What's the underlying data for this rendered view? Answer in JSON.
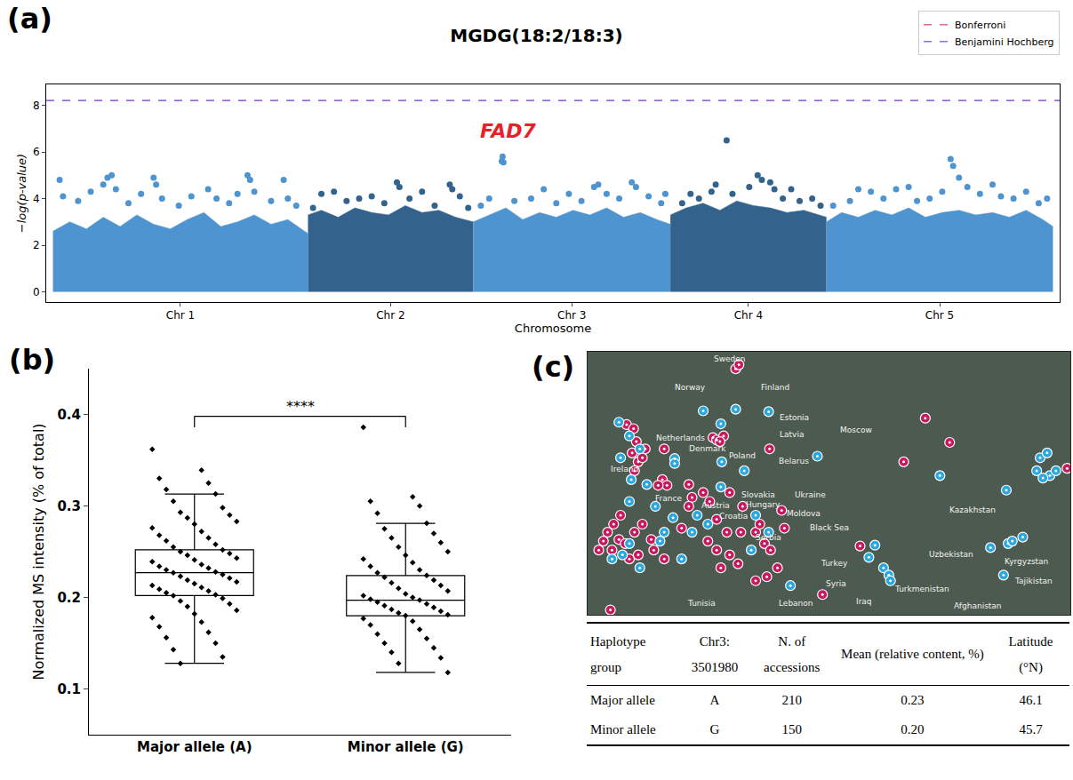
{
  "chart_data": [
    {
      "panel": "(a)",
      "type": "scatter",
      "title": "MGDG(18:2/18:3)",
      "x_label": "Chromosome",
      "y_label": "−log(p-value)",
      "xlim": [
        -0.8,
        120
      ],
      "ylim": [
        -0.44,
        8.9
      ],
      "xticks": [
        {
          "value": 15.2,
          "label": "Chr 1"
        },
        {
          "value": 40.25,
          "label": "Chr 2"
        },
        {
          "value": 61.85,
          "label": "Chr 3"
        },
        {
          "value": 82.9,
          "label": "Chr 4"
        },
        {
          "value": 105.7,
          "label": "Chr 5"
        }
      ],
      "yticks": [
        0,
        2,
        4,
        6,
        8
      ],
      "grid": false,
      "legend": "top right",
      "marker": "circle",
      "series": [
        {
          "type": "area",
          "color": "#4e94d0",
          "x": [
            0,
            2,
            4,
            6,
            8,
            10,
            12,
            14,
            16,
            18,
            20,
            22,
            24,
            26,
            28,
            30.4
          ],
          "values": [
            2.6,
            3.0,
            2.7,
            3.2,
            2.8,
            3.3,
            2.9,
            2.7,
            3.1,
            3.4,
            2.8,
            3.0,
            3.3,
            2.9,
            3.1,
            2.5
          ]
        },
        {
          "type": "scatter",
          "color": "#4e94d0",
          "x": [
            0.8,
            1.2,
            3.0,
            4.5,
            6.0,
            6.5,
            7.0,
            7.5,
            9.0,
            10.5,
            12.0,
            12.3,
            13.0,
            15.0,
            16.5,
            18.5,
            19.5,
            21.0,
            22.0,
            23.2,
            23.5,
            24.0,
            26.0,
            27.5,
            28.0,
            29.0
          ],
          "values": [
            4.8,
            4.1,
            3.9,
            4.3,
            4.6,
            4.9,
            5.0,
            4.4,
            3.8,
            4.2,
            4.9,
            4.6,
            4.0,
            3.7,
            4.1,
            4.4,
            4.0,
            3.8,
            4.2,
            5.0,
            4.8,
            4.3,
            3.9,
            4.8,
            4.0,
            3.7
          ]
        },
        {
          "type": "area",
          "color": "#33628c",
          "x": [
            30.4,
            32,
            34,
            36,
            38,
            40,
            42,
            44,
            46,
            48,
            50.1
          ],
          "values": [
            3.3,
            3.5,
            3.2,
            3.6,
            3.4,
            3.3,
            3.7,
            3.4,
            3.5,
            3.2,
            3.0
          ]
        },
        {
          "type": "scatter",
          "color": "#33628c",
          "x": [
            31.0,
            32.0,
            33.5,
            35.0,
            36.5,
            38.0,
            39.5,
            41.0,
            41.3,
            42.5,
            44.0,
            45.5,
            47.3,
            47.6,
            48.5,
            49.5
          ],
          "values": [
            3.6,
            4.2,
            4.3,
            3.9,
            4.0,
            4.1,
            3.8,
            4.7,
            4.5,
            4.0,
            4.3,
            3.7,
            4.6,
            4.4,
            4.1,
            3.6
          ]
        },
        {
          "type": "area",
          "color": "#4e94d0",
          "x": [
            50.1,
            52,
            54,
            56,
            58,
            60,
            62,
            64,
            66,
            68,
            70,
            72,
            73.6
          ],
          "values": [
            3.0,
            3.3,
            3.6,
            3.1,
            3.4,
            3.2,
            3.5,
            3.3,
            3.6,
            3.2,
            3.4,
            3.1,
            2.9
          ]
        },
        {
          "type": "scatter",
          "color": "#4e94d0",
          "x": [
            51.0,
            52.0,
            53.5,
            53.6,
            53.7,
            55.0,
            57.0,
            58.5,
            60.0,
            61.5,
            63.0,
            64.5,
            65.0,
            66.0,
            67.5,
            69.0,
            69.5,
            71.0,
            72.5,
            73.0
          ],
          "values": [
            3.7,
            4.0,
            5.6,
            5.8,
            5.55,
            3.9,
            4.0,
            4.4,
            3.8,
            4.2,
            3.9,
            4.5,
            4.6,
            4.2,
            4.0,
            4.7,
            4.5,
            4.1,
            3.8,
            4.2
          ]
        },
        {
          "type": "area",
          "color": "#33628c",
          "x": [
            73.6,
            75.5,
            77.5,
            79.5,
            81.5,
            83.5,
            85.5,
            87.5,
            89.5,
            92.2
          ],
          "values": [
            3.3,
            3.6,
            3.8,
            3.5,
            3.9,
            3.7,
            3.6,
            3.4,
            3.5,
            3.2
          ]
        },
        {
          "type": "scatter",
          "color": "#33628c",
          "x": [
            75.0,
            76.0,
            77.0,
            78.5,
            79.0,
            80.3,
            81.0,
            83.0,
            84.0,
            84.5,
            85.5,
            86.0,
            87.0,
            88.0,
            89.0,
            90.5,
            91.5
          ],
          "values": [
            3.8,
            4.2,
            4.0,
            4.3,
            4.6,
            6.5,
            4.2,
            4.5,
            5.0,
            4.8,
            4.7,
            4.4,
            4.0,
            4.4,
            3.9,
            4.0,
            3.7
          ]
        },
        {
          "type": "area",
          "color": "#4e94d0",
          "x": [
            92.2,
            94,
            96,
            98,
            100,
            102,
            104,
            106,
            108,
            110,
            112,
            114,
            116,
            118,
            119.2
          ],
          "values": [
            3.0,
            3.4,
            3.2,
            3.5,
            3.3,
            3.6,
            3.2,
            3.4,
            3.5,
            3.3,
            3.4,
            3.2,
            3.5,
            3.1,
            2.8
          ]
        },
        {
          "type": "scatter",
          "color": "#4e94d0",
          "x": [
            93.0,
            95.0,
            96.0,
            97.5,
            99.0,
            100.5,
            102.0,
            103.0,
            104.5,
            106.0,
            107.0,
            107.3,
            108.0,
            109.0,
            110.5,
            112.0,
            113.0,
            114.5,
            116.0,
            117.5,
            118.5
          ],
          "values": [
            3.7,
            3.9,
            4.4,
            4.3,
            4.0,
            4.4,
            4.5,
            3.9,
            4.0,
            4.3,
            5.7,
            5.4,
            4.9,
            4.5,
            4.2,
            4.6,
            4.1,
            4.0,
            4.3,
            3.8,
            4.0
          ]
        }
      ],
      "thresholds": [
        {
          "name": "Bonferroni",
          "value": 8.2,
          "color": "#f0608a",
          "line_style": "dash"
        },
        {
          "name": "Benjamini Hochberg",
          "value": 8.2,
          "color": "#8a70e0",
          "line_style": "dash"
        }
      ],
      "annotations": [
        {
          "text": "FAD7",
          "x": 54.3,
          "y": 6.9,
          "color": "#e8202a"
        }
      ]
    },
    {
      "panel": "(b)",
      "type": "box",
      "y_label": "Normalized MS intensity (% of total)",
      "categories": [
        "Major allele (A)",
        "Minor allele (G)"
      ],
      "ylim": [
        0.05,
        0.45
      ],
      "yticks": [
        0.1,
        0.2,
        0.3,
        0.4
      ],
      "grid": false,
      "marker": "diamond",
      "color": "#000000",
      "boxes": [
        {
          "lower": 0.128,
          "q1": 0.202,
          "median": 0.227,
          "q3": 0.252,
          "upper": 0.313
        },
        {
          "lower": 0.118,
          "q1": 0.18,
          "median": 0.197,
          "q3": 0.224,
          "upper": 0.281
        }
      ],
      "points": [
        [
          0.362,
          0.339,
          0.33,
          0.325,
          0.318,
          0.313,
          0.305,
          0.298,
          0.293,
          0.29,
          0.287,
          0.283,
          0.28,
          0.276,
          0.272,
          0.268,
          0.265,
          0.262,
          0.258,
          0.255,
          0.252,
          0.25,
          0.248,
          0.246,
          0.243,
          0.241,
          0.239,
          0.236,
          0.234,
          0.232,
          0.23,
          0.228,
          0.227,
          0.225,
          0.223,
          0.221,
          0.219,
          0.217,
          0.215,
          0.213,
          0.211,
          0.209,
          0.207,
          0.205,
          0.203,
          0.202,
          0.199,
          0.196,
          0.193,
          0.19,
          0.186,
          0.182,
          0.178,
          0.173,
          0.168,
          0.162,
          0.156,
          0.15,
          0.143,
          0.135,
          0.128
        ],
        [
          0.386,
          0.31,
          0.305,
          0.3,
          0.292,
          0.281,
          0.275,
          0.27,
          0.265,
          0.26,
          0.255,
          0.25,
          0.246,
          0.242,
          0.238,
          0.234,
          0.23,
          0.227,
          0.224,
          0.222,
          0.219,
          0.216,
          0.213,
          0.21,
          0.207,
          0.204,
          0.202,
          0.2,
          0.198,
          0.197,
          0.195,
          0.193,
          0.191,
          0.189,
          0.187,
          0.185,
          0.183,
          0.181,
          0.18,
          0.177,
          0.174,
          0.17,
          0.165,
          0.16,
          0.155,
          0.15,
          0.145,
          0.14,
          0.134,
          0.128,
          0.118
        ]
      ],
      "significance": {
        "text": "****",
        "y": 0.398
      }
    },
    {
      "panel": "(c)",
      "type": "map",
      "xlim": [
        -17,
        87
      ],
      "ylim": [
        32,
        64.5
      ],
      "tick_labels": false,
      "grid": false,
      "marker": "pin",
      "series": [
        {
          "color": "#c8185e",
          "x": [
            14.9,
            15.6,
            10.0,
            10.8,
            12.3,
            11.5,
            -8.6,
            -7.1,
            -6.5,
            -7.4,
            -6.1,
            -6.9,
            -5.2,
            -4.6,
            -0.5,
            -0.9,
            0.1,
            4.8,
            5.5,
            4.8,
            7.9,
            9.3,
            13.6,
            10.8,
            8.9,
            10.8,
            11.7,
            13.6,
            13.0,
            16.0,
            16.4,
            19.2,
            20.1,
            21.1,
            22.4,
            24.8,
            25.4,
            23.9,
            21.6,
            19.2,
            15.4,
            -9.9,
            -11.4,
            -12.7,
            -13.6,
            -14.6,
            -11.75,
            -10.25,
            -8.9,
            -8.0,
            -6.1,
            -6.9,
            -3.3,
            -2.75,
            -0.5,
            -5.2,
            -12.1,
            33.6,
            41.7,
            55.75,
            61.0,
            51.1,
            22.2,
            86.3,
            3.25,
            -1.8
          ],
          "values": [
            62.4,
            62.9,
            53.9,
            53.6,
            54.1,
            53.4,
            55.5,
            55.0,
            53.4,
            52.0,
            50.9,
            49.8,
            51.4,
            52.5,
            52.5,
            48.7,
            48.0,
            48.1,
            46.5,
            45.4,
            47.1,
            46.0,
            47.1,
            43.8,
            41.1,
            40.0,
            37.8,
            39.4,
            42.2,
            42.2,
            45.4,
            42.2,
            43.2,
            40.8,
            40.0,
            44.9,
            42.7,
            37.8,
            36.7,
            36.2,
            38.3,
            44.3,
            43.2,
            42.2,
            41.1,
            40.0,
            40.0,
            41.3,
            40.8,
            38.9,
            39.4,
            42.2,
            41.3,
            40.0,
            38.9,
            43.2,
            32.6,
            34.5,
            40.5,
            56.3,
            53.3,
            50.9,
            52.5,
            50.1,
            42.7,
            48.0
          ]
        },
        {
          "color": "#2aa7de",
          "x": [
            7.9,
            14.9,
            22.0,
            11.7,
            1.75,
            1.75,
            11.9,
            11.7,
            16.75,
            19.2,
            -10.25,
            -8.0,
            -9.9,
            -7.6,
            -8.0,
            -5.75,
            -4.25,
            -2.4,
            1.4,
            -0.5,
            -1.4,
            -8.0,
            -9.5,
            -11.75,
            -5.75,
            6.6,
            8.9,
            18.25,
            22.0,
            26.7,
            32.5,
            58.9,
            73.2,
            80.5,
            82.0,
            79.75,
            82.6,
            81.1,
            83.9,
            69.8,
            73.6,
            74.5,
            76.75,
            72.6,
            44.9,
            43.6,
            46.75,
            47.9,
            48.25,
            3.25,
            5.5
          ],
          "values": [
            57.2,
            57.4,
            57.1,
            55.6,
            51.3,
            50.7,
            50.9,
            47.8,
            49.8,
            44.3,
            55.8,
            54.1,
            51.4,
            48.7,
            46.0,
            52.5,
            48.1,
            45.4,
            44.0,
            42.2,
            41.1,
            40.8,
            39.4,
            38.9,
            37.8,
            44.3,
            43.2,
            40.0,
            42.2,
            35.6,
            51.6,
            49.2,
            47.4,
            51.4,
            52.0,
            49.8,
            49.2,
            48.9,
            49.8,
            40.3,
            40.8,
            41.1,
            41.6,
            36.9,
            40.6,
            39.1,
            37.8,
            36.9,
            36.2,
            38.9,
            42.2
          ]
        }
      ],
      "place_labels": [
        {
          "text": "Sweden",
          "x": 13.6,
          "y": 63.6
        },
        {
          "text": "Norway",
          "x": 5.1,
          "y": 60.1
        },
        {
          "text": "Finland",
          "x": 23.5,
          "y": 60.1
        },
        {
          "text": "Estonia",
          "x": 27.5,
          "y": 56.4
        },
        {
          "text": "Latvia",
          "x": 27.0,
          "y": 54.3
        },
        {
          "text": "Denmark",
          "x": 8.9,
          "y": 52.5
        },
        {
          "text": "Moscow",
          "x": 40.75,
          "y": 54.8
        },
        {
          "text": "Belarus",
          "x": 27.5,
          "y": 51.0
        },
        {
          "text": "Poland",
          "x": 16.4,
          "y": 51.6
        },
        {
          "text": "Ireland",
          "x": -9.0,
          "y": 50.0
        },
        {
          "text": "France",
          "x": 0.4,
          "y": 46.4
        },
        {
          "text": "Netherlands",
          "x": 3.0,
          "y": 53.8
        },
        {
          "text": "Slovakia",
          "x": 19.8,
          "y": 46.8
        },
        {
          "text": "Ukraine",
          "x": 31.0,
          "y": 46.8
        },
        {
          "text": "Austria",
          "x": 10.6,
          "y": 45.5
        },
        {
          "text": "Hungary",
          "x": 20.9,
          "y": 45.6
        },
        {
          "text": "Moldova",
          "x": 29.6,
          "y": 44.5
        },
        {
          "text": "Croatia",
          "x": 14.5,
          "y": 44.2
        },
        {
          "text": "Serbia",
          "x": 22.0,
          "y": 41.5
        },
        {
          "text": "Black Sea",
          "x": 35.1,
          "y": 42.8
        },
        {
          "text": "Turkey",
          "x": 36.1,
          "y": 38.4
        },
        {
          "text": "Kazakhstan",
          "x": 66.0,
          "y": 45.0
        },
        {
          "text": "Uzbekistan",
          "x": 61.4,
          "y": 39.5
        },
        {
          "text": "Kyrgyzstan",
          "x": 77.5,
          "y": 38.6
        },
        {
          "text": "Turkmenistan",
          "x": 55.0,
          "y": 35.2
        },
        {
          "text": "Tajikistan",
          "x": 79.0,
          "y": 36.2
        },
        {
          "text": "Afghanistan",
          "x": 67.0,
          "y": 33.1
        },
        {
          "text": "Iraq",
          "x": 42.5,
          "y": 33.6
        },
        {
          "text": "Syria",
          "x": 36.5,
          "y": 35.8
        },
        {
          "text": "Lebanon",
          "x": 28.0,
          "y": 33.4
        },
        {
          "text": "Tunisia",
          "x": 7.5,
          "y": 33.4
        }
      ]
    }
  ],
  "table": {
    "header": [
      "Haplotype group",
      "Chr3: 3501980",
      "N. of accessions",
      "Mean (relative content, %)",
      "Latitude (°N)"
    ],
    "rows": [
      [
        "Major allele",
        "A",
        "210",
        "0.23",
        "46.1"
      ],
      [
        "Minor allele",
        "G",
        "150",
        "0.20",
        "45.7"
      ]
    ]
  }
}
